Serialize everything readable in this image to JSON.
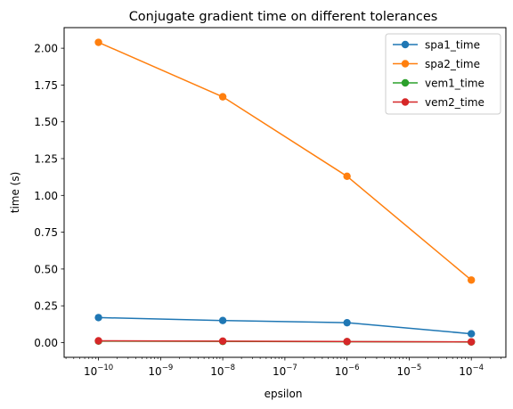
{
  "chart_data": {
    "type": "line",
    "title": "Conjugate gradient time on different tolerances",
    "xlabel": "epsilon",
    "ylabel": "time (s)",
    "xscale": "log",
    "x": [
      1e-10,
      1e-08,
      1e-06,
      0.0001
    ],
    "xlim": [
      2.8e-11,
      0.00036
    ],
    "ylim": [
      -0.1,
      2.14
    ],
    "x_major_ticks": [
      {
        "value": 1e-10,
        "base": "10",
        "exp": "−10"
      },
      {
        "value": 1e-09,
        "base": "10",
        "exp": "−9"
      },
      {
        "value": 1e-08,
        "base": "10",
        "exp": "−8"
      },
      {
        "value": 1e-07,
        "base": "10",
        "exp": "−7"
      },
      {
        "value": 1e-06,
        "base": "10",
        "exp": "−6"
      },
      {
        "value": 1e-05,
        "base": "10",
        "exp": "−5"
      },
      {
        "value": 0.0001,
        "base": "10",
        "exp": "−4"
      }
    ],
    "y_ticks": [
      {
        "value": 0.0,
        "label": "0.00"
      },
      {
        "value": 0.25,
        "label": "0.25"
      },
      {
        "value": 0.5,
        "label": "0.50"
      },
      {
        "value": 0.75,
        "label": "0.75"
      },
      {
        "value": 1.0,
        "label": "1.00"
      },
      {
        "value": 1.25,
        "label": "1.25"
      },
      {
        "value": 1.5,
        "label": "1.50"
      },
      {
        "value": 1.75,
        "label": "1.75"
      },
      {
        "value": 2.0,
        "label": "2.00"
      }
    ],
    "series": [
      {
        "name": "spa1_time",
        "color": "#1f77b4",
        "values": [
          0.17,
          0.15,
          0.135,
          0.06
        ]
      },
      {
        "name": "spa2_time",
        "color": "#ff7f0e",
        "values": [
          2.04,
          1.67,
          1.13,
          0.425
        ]
      },
      {
        "name": "vem1_time",
        "color": "#2ca02c",
        "values": [
          0.01,
          0.008,
          0.006,
          0.004
        ]
      },
      {
        "name": "vem2_time",
        "color": "#d62728",
        "values": [
          0.012,
          0.01,
          0.007,
          0.005
        ]
      }
    ],
    "legend_position": "top-right",
    "grid": false
  }
}
